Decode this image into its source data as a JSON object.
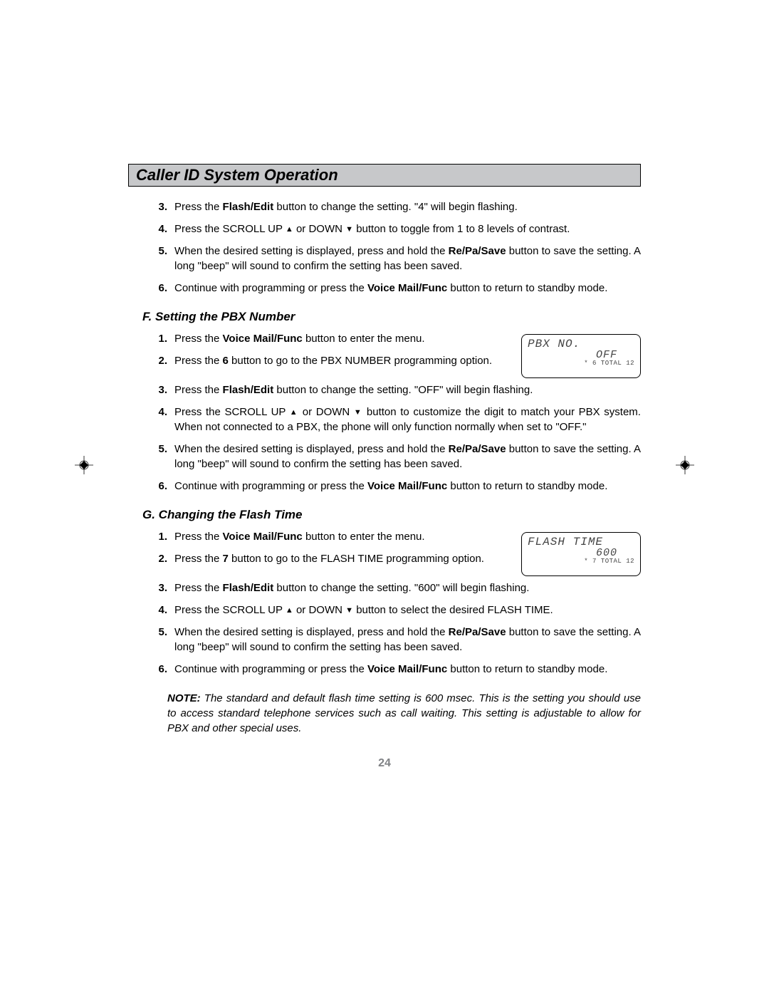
{
  "header": "Caller ID System Operation",
  "section_top": {
    "items": [
      {
        "n": "3.",
        "parts": [
          "Press the  ",
          {
            "b": "Flash/Edit"
          },
          "  button to change the setting. \"4\" will begin flashing."
        ]
      },
      {
        "n": "4.",
        "parts": [
          "Press the SCROLL UP ",
          {
            "tri": "up"
          },
          " or DOWN ",
          {
            "tri": "down"
          },
          " button to toggle from 1 to 8 levels of contrast."
        ]
      },
      {
        "n": "5.",
        "parts": [
          "When the desired setting is displayed, press and hold the  ",
          {
            "b": "Re/Pa/Save"
          },
          "  button to save the setting. A long \"beep\" will sound to confirm the setting has been saved."
        ]
      },
      {
        "n": "6.",
        "parts": [
          "Continue with programming or press the  ",
          {
            "b": "Voice Mail/Func"
          },
          "   button to return to standby mode."
        ]
      }
    ]
  },
  "section_f": {
    "title": "F.  Setting the PBX Number",
    "lcd": {
      "l1": "PBX NO.",
      "l2": "OFF",
      "l3": "* 6 TOTAL 12"
    },
    "items_a": [
      {
        "n": "1.",
        "parts": [
          "Press the  ",
          {
            "b": "Voice Mail/Func"
          },
          "  button to enter the menu."
        ]
      },
      {
        "n": "2.",
        "parts": [
          "Press the   ",
          {
            "b": "6"
          },
          "   button to go to the PBX NUMBER programming option."
        ]
      }
    ],
    "items_b": [
      {
        "n": "3.",
        "parts": [
          "Press the  ",
          {
            "b": "Flash/Edit"
          },
          "  button to change the setting. \"OFF\" will begin flashing."
        ]
      },
      {
        "n": "4.",
        "parts": [
          "Press the SCROLL UP ",
          {
            "tri": "up"
          },
          " or DOWN ",
          {
            "tri": "down"
          },
          " button to customize the digit to match your PBX system. When not connected to a PBX, the phone will only function normally when set to \"OFF.\""
        ]
      },
      {
        "n": "5.",
        "parts": [
          "When the desired setting is displayed, press and hold the  ",
          {
            "b": "Re/Pa/Save"
          },
          "  button to save the setting. A long \"beep\" will sound to confirm the setting has been saved."
        ]
      },
      {
        "n": "6.",
        "parts": [
          "Continue with programming or press the  ",
          {
            "b": "Voice Mail/Func"
          },
          "   button to return to standby mode."
        ]
      }
    ]
  },
  "section_g": {
    "title": "G.  Changing the Flash Time",
    "lcd": {
      "l1": "FLASH TIME",
      "l2": "600",
      "l3": "* 7 TOTAL 12"
    },
    "items_a": [
      {
        "n": "1.",
        "parts": [
          "Press the  ",
          {
            "b": "Voice Mail/Func"
          },
          "  button to enter the menu."
        ]
      },
      {
        "n": "2.",
        "parts": [
          "Press the   ",
          {
            "b": "7"
          },
          "   button to go to the FLASH TIME programming option."
        ]
      }
    ],
    "items_b": [
      {
        "n": "3.",
        "parts": [
          "Press the  ",
          {
            "b": "Flash/Edit"
          },
          "  button to change the setting. \"600\" will begin flashing."
        ]
      },
      {
        "n": "4.",
        "parts": [
          "Press the SCROLL UP ",
          {
            "tri": "up"
          },
          " or DOWN ",
          {
            "tri": "down"
          },
          " button to select the desired FLASH TIME."
        ]
      },
      {
        "n": "5.",
        "parts": [
          "When the desired setting is displayed, press and hold the  ",
          {
            "b": "Re/Pa/Save"
          },
          "  button to save the setting. A long \"beep\" will sound to confirm the setting has been saved."
        ]
      },
      {
        "n": "6.",
        "parts": [
          "Continue with programming or press the  ",
          {
            "b": "Voice Mail/Func"
          },
          "   button to return to standby mode."
        ]
      }
    ],
    "note": {
      "label": "NOTE:",
      "text": " The standard and default flash time setting is 600 msec. This is the setting you should use to access standard telephone services such as call waiting. This setting is adjustable to allow for PBX and other special uses."
    }
  },
  "page_number": "24"
}
